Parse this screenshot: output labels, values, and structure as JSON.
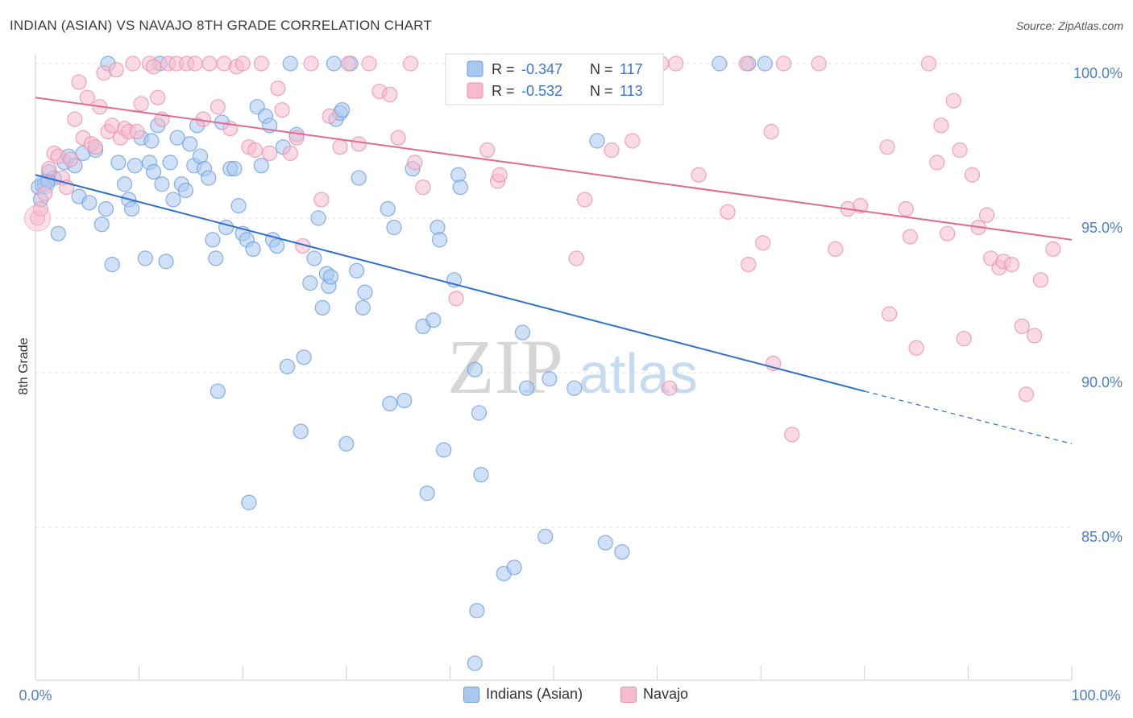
{
  "header": {
    "title": "INDIAN (ASIAN) VS NAVAJO 8TH GRADE CORRELATION CHART",
    "source": "Source: ZipAtlas.com"
  },
  "watermark": {
    "zip": "ZIP",
    "atlas": "atlas"
  },
  "legend_top": {
    "rows": [
      {
        "r_label": "R =",
        "r_value": "-0.347",
        "n_label": "N =",
        "n_value": "117"
      },
      {
        "r_label": "R =",
        "r_value": "-0.532",
        "n_label": "N =",
        "n_value": "113"
      }
    ]
  },
  "legend_bottom": {
    "items": [
      "Indians (Asian)",
      "Navajo"
    ]
  },
  "colors": {
    "blue_fill": "#a9c8f0",
    "blue_stroke": "#6a9ee0",
    "blue_line": "#2f6fce",
    "pink_fill": "#f6bccd",
    "pink_stroke": "#ec8fac",
    "pink_line": "#e06a91",
    "tick_label": "#4a7fd0",
    "grid": "#e2e2e2"
  },
  "chart_data": {
    "type": "scatter",
    "title": "INDIAN (ASIAN) VS NAVAJO 8TH GRADE CORRELATION CHART",
    "xlabel": "",
    "ylabel": "8th Grade",
    "xlim": [
      0,
      100
    ],
    "ylim": [
      80.5,
      101
    ],
    "x_tick_labels": [
      "0.0%",
      "100.0%"
    ],
    "y_ticks": [
      85,
      90,
      95,
      100
    ],
    "y_tick_labels": [
      "85.0%",
      "90.0%",
      "95.0%",
      "100.0%"
    ],
    "grid": true,
    "legend_placement": "top-center",
    "series": [
      {
        "name": "Indians (Asian)",
        "r": -0.347,
        "n": 117,
        "trend": {
          "x0": 0,
          "y0": 96.4,
          "x1": 80,
          "y1": 89.4,
          "dashed_to_x": 100,
          "dashed_to_y": 87.7
        },
        "points": [
          [
            0.3,
            96.0
          ],
          [
            0.5,
            95.6
          ],
          [
            0.9,
            96.1
          ],
          [
            1.3,
            96.5
          ],
          [
            1.8,
            96.3
          ],
          [
            2.2,
            94.5
          ],
          [
            2.8,
            96.8
          ],
          [
            3.2,
            97.0
          ],
          [
            3.8,
            96.7
          ],
          [
            4.2,
            95.7
          ],
          [
            4.6,
            97.1
          ],
          [
            5.2,
            95.5
          ],
          [
            5.8,
            97.2
          ],
          [
            6.4,
            94.8
          ],
          [
            6.8,
            95.3
          ],
          [
            7.4,
            93.5
          ],
          [
            8.0,
            96.8
          ],
          [
            8.6,
            96.1
          ],
          [
            9.0,
            95.6
          ],
          [
            9.3,
            95.3
          ],
          [
            9.6,
            96.7
          ],
          [
            10.2,
            97.6
          ],
          [
            10.6,
            93.7
          ],
          [
            11.0,
            96.8
          ],
          [
            11.2,
            97.5
          ],
          [
            11.4,
            96.5
          ],
          [
            11.8,
            98.0
          ],
          [
            12.2,
            96.1
          ],
          [
            12.6,
            93.6
          ],
          [
            13.0,
            96.8
          ],
          [
            13.3,
            95.6
          ],
          [
            13.7,
            97.6
          ],
          [
            14.1,
            96.1
          ],
          [
            14.5,
            95.9
          ],
          [
            14.9,
            97.4
          ],
          [
            15.3,
            96.7
          ],
          [
            15.6,
            98.0
          ],
          [
            15.9,
            97.0
          ],
          [
            16.3,
            96.6
          ],
          [
            16.7,
            96.3
          ],
          [
            17.1,
            94.3
          ],
          [
            17.4,
            93.7
          ],
          [
            17.6,
            89.4
          ],
          [
            18.0,
            98.1
          ],
          [
            18.4,
            94.7
          ],
          [
            18.8,
            96.6
          ],
          [
            19.2,
            96.6
          ],
          [
            19.6,
            95.4
          ],
          [
            20.0,
            94.5
          ],
          [
            20.4,
            94.3
          ],
          [
            20.6,
            85.8
          ],
          [
            21.0,
            94.0
          ],
          [
            21.4,
            98.6
          ],
          [
            21.8,
            96.7
          ],
          [
            22.2,
            98.3
          ],
          [
            22.6,
            98.0
          ],
          [
            22.9,
            94.3
          ],
          [
            23.3,
            94.1
          ],
          [
            23.9,
            97.3
          ],
          [
            24.3,
            90.2
          ],
          [
            24.6,
            100.0
          ],
          [
            25.2,
            97.7
          ],
          [
            25.6,
            88.1
          ],
          [
            25.9,
            90.5
          ],
          [
            26.5,
            92.9
          ],
          [
            26.9,
            93.7
          ],
          [
            27.3,
            95.0
          ],
          [
            27.7,
            92.1
          ],
          [
            28.1,
            93.2
          ],
          [
            28.3,
            92.8
          ],
          [
            28.5,
            93.1
          ],
          [
            29.0,
            98.2
          ],
          [
            29.4,
            98.4
          ],
          [
            29.6,
            98.5
          ],
          [
            30.0,
            87.7
          ],
          [
            30.4,
            100.0
          ],
          [
            31.0,
            93.3
          ],
          [
            31.6,
            92.1
          ],
          [
            31.8,
            92.6
          ],
          [
            31.2,
            96.3
          ],
          [
            34.0,
            95.3
          ],
          [
            34.2,
            89.0
          ],
          [
            34.6,
            94.7
          ],
          [
            35.6,
            89.1
          ],
          [
            36.4,
            96.6
          ],
          [
            37.4,
            91.5
          ],
          [
            37.8,
            86.1
          ],
          [
            38.4,
            91.7
          ],
          [
            38.8,
            94.7
          ],
          [
            39.0,
            94.3
          ],
          [
            39.4,
            87.5
          ],
          [
            40.4,
            93.0
          ],
          [
            40.8,
            96.4
          ],
          [
            41.0,
            96.0
          ],
          [
            42.4,
            90.1
          ],
          [
            42.8,
            88.7
          ],
          [
            43.0,
            86.7
          ],
          [
            45.2,
            83.5
          ],
          [
            45.8,
            100.0
          ],
          [
            46.2,
            83.7
          ],
          [
            47.0,
            91.3
          ],
          [
            47.4,
            89.5
          ],
          [
            49.2,
            84.7
          ],
          [
            49.6,
            89.8
          ],
          [
            52.0,
            89.5
          ],
          [
            54.2,
            97.5
          ],
          [
            55.0,
            84.5
          ],
          [
            56.6,
            84.2
          ],
          [
            66.0,
            100.0
          ],
          [
            68.8,
            100.0
          ],
          [
            70.4,
            100.0
          ],
          [
            42.6,
            82.3
          ],
          [
            42.4,
            80.6
          ],
          [
            28.8,
            100.0
          ],
          [
            7.0,
            100.0
          ],
          [
            12.0,
            100.0
          ],
          [
            1.2,
            96.2
          ]
        ]
      },
      {
        "name": "Navajo",
        "r": -0.532,
        "n": 113,
        "trend": {
          "x0": 0,
          "y0": 98.9,
          "x1": 100,
          "y1": 94.3
        },
        "points": [
          [
            0.2,
            95.0
          ],
          [
            0.5,
            95.3
          ],
          [
            0.9,
            95.8
          ],
          [
            1.3,
            96.6
          ],
          [
            1.8,
            97.1
          ],
          [
            2.2,
            97.0
          ],
          [
            2.6,
            96.3
          ],
          [
            3.0,
            96.0
          ],
          [
            3.4,
            96.9
          ],
          [
            3.8,
            98.2
          ],
          [
            4.2,
            99.4
          ],
          [
            4.6,
            97.6
          ],
          [
            5.0,
            98.9
          ],
          [
            5.4,
            97.4
          ],
          [
            5.8,
            97.3
          ],
          [
            6.2,
            98.6
          ],
          [
            6.6,
            99.7
          ],
          [
            7.0,
            97.8
          ],
          [
            7.4,
            98.0
          ],
          [
            7.8,
            99.8
          ],
          [
            8.2,
            97.6
          ],
          [
            8.6,
            97.9
          ],
          [
            9.0,
            97.8
          ],
          [
            9.4,
            100.0
          ],
          [
            9.8,
            97.8
          ],
          [
            10.2,
            98.7
          ],
          [
            11.0,
            100.0
          ],
          [
            11.4,
            99.9
          ],
          [
            11.8,
            98.9
          ],
          [
            12.2,
            98.2
          ],
          [
            12.8,
            100.0
          ],
          [
            13.6,
            100.0
          ],
          [
            14.6,
            100.0
          ],
          [
            15.4,
            100.0
          ],
          [
            16.2,
            98.2
          ],
          [
            16.8,
            100.0
          ],
          [
            17.6,
            98.6
          ],
          [
            18.2,
            100.0
          ],
          [
            18.8,
            97.9
          ],
          [
            19.4,
            99.9
          ],
          [
            20.0,
            100.0
          ],
          [
            20.6,
            97.3
          ],
          [
            21.2,
            97.2
          ],
          [
            21.8,
            100.0
          ],
          [
            22.6,
            97.1
          ],
          [
            23.4,
            99.2
          ],
          [
            23.8,
            98.5
          ],
          [
            24.6,
            97.1
          ],
          [
            25.2,
            97.6
          ],
          [
            25.8,
            94.1
          ],
          [
            26.6,
            100.0
          ],
          [
            27.6,
            95.6
          ],
          [
            28.4,
            98.3
          ],
          [
            29.4,
            97.3
          ],
          [
            30.2,
            100.0
          ],
          [
            31.2,
            97.4
          ],
          [
            32.2,
            100.0
          ],
          [
            33.2,
            99.1
          ],
          [
            34.2,
            99.0
          ],
          [
            35.0,
            97.6
          ],
          [
            36.2,
            100.0
          ],
          [
            36.6,
            96.8
          ],
          [
            37.4,
            96.0
          ],
          [
            40.6,
            92.4
          ],
          [
            42.4,
            100.0
          ],
          [
            43.6,
            97.2
          ],
          [
            44.6,
            96.2
          ],
          [
            44.8,
            96.4
          ],
          [
            48.6,
            100.0
          ],
          [
            52.2,
            93.7
          ],
          [
            53.0,
            95.6
          ],
          [
            55.6,
            97.2
          ],
          [
            57.6,
            97.5
          ],
          [
            60.4,
            100.0
          ],
          [
            61.2,
            89.5
          ],
          [
            61.8,
            100.0
          ],
          [
            64.0,
            96.4
          ],
          [
            66.8,
            95.2
          ],
          [
            68.6,
            100.0
          ],
          [
            68.8,
            93.5
          ],
          [
            70.2,
            94.2
          ],
          [
            71.0,
            97.8
          ],
          [
            71.2,
            90.3
          ],
          [
            72.2,
            100.0
          ],
          [
            73.0,
            88.0
          ],
          [
            75.6,
            100.0
          ],
          [
            77.2,
            94.0
          ],
          [
            78.4,
            95.3
          ],
          [
            79.6,
            95.4
          ],
          [
            82.2,
            97.3
          ],
          [
            82.4,
            91.9
          ],
          [
            84.0,
            95.3
          ],
          [
            84.4,
            94.4
          ],
          [
            85.0,
            90.8
          ],
          [
            86.2,
            100.0
          ],
          [
            87.0,
            96.8
          ],
          [
            87.4,
            98.0
          ],
          [
            88.0,
            94.5
          ],
          [
            88.6,
            98.8
          ],
          [
            89.2,
            97.2
          ],
          [
            89.6,
            91.1
          ],
          [
            90.4,
            96.4
          ],
          [
            91.0,
            94.7
          ],
          [
            91.8,
            95.1
          ],
          [
            92.2,
            93.7
          ],
          [
            93.0,
            93.4
          ],
          [
            93.4,
            93.6
          ],
          [
            94.2,
            93.5
          ],
          [
            95.2,
            91.5
          ],
          [
            95.6,
            89.3
          ],
          [
            96.4,
            91.2
          ],
          [
            97.0,
            93.0
          ],
          [
            98.2,
            94.0
          ]
        ]
      }
    ]
  }
}
